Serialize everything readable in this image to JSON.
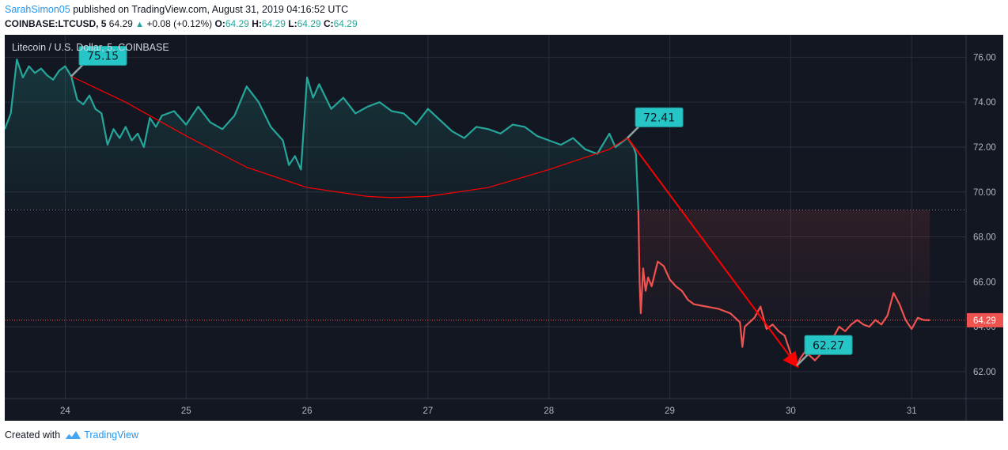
{
  "header": {
    "user": "SarahSimon05",
    "published_text": "published on TradingView.com, August 31, 2019 04:16:52 UTC",
    "symbol": "COINBASE:LTCUSD, 5",
    "last": "64.29",
    "arrow": "▲",
    "change": "+0.08 (+0.12%)",
    "o_label": "O:",
    "o_val": "64.29",
    "h_label": "H:",
    "h_val": "64.29",
    "l_label": "L:",
    "l_val": "64.29",
    "c_label": "C:",
    "c_val": "64.29"
  },
  "footer": {
    "created_with": "Created with",
    "brand": "TradingView"
  },
  "colors": {
    "background": "#131722",
    "grid": "#2a2e39",
    "up_line": "#26a69a",
    "down_line": "#ef5350",
    "annotation_bg": "#26c6c6",
    "trend": "#ff0000",
    "price_label_bg": "#ef5350",
    "axis_text": "#b2b5be",
    "logo_color": "#2196f3"
  },
  "chart_data": {
    "type": "line",
    "title": "Litecoin / U.S. Dollar, 5, COINBASE",
    "xlabel": "",
    "ylabel": "",
    "x_range": [
      23.5,
      31.45
    ],
    "ylim": [
      60.8,
      77.0
    ],
    "grid": true,
    "x_ticks": [
      24,
      25,
      26,
      27,
      28,
      29,
      30,
      31
    ],
    "x_tick_labels": [
      "24",
      "25",
      "26",
      "27",
      "28",
      "29",
      "30",
      "31"
    ],
    "y_ticks": [
      62,
      64,
      66,
      68,
      70,
      72,
      74,
      76
    ],
    "y_tick_labels": [
      "62.00",
      "64.00",
      "66.00",
      "68.00",
      "70.00",
      "72.00",
      "74.00",
      "76.00"
    ],
    "series": [
      {
        "color": "up",
        "x": [
          23.5,
          23.55,
          23.6,
          23.65,
          23.7,
          23.75,
          23.8,
          23.85,
          23.9,
          23.95,
          24.0,
          24.05,
          24.1,
          24.15,
          24.2,
          24.25,
          24.3,
          24.35,
          24.4,
          24.45,
          24.5,
          24.55,
          24.6,
          24.65,
          24.7,
          24.75,
          24.8,
          24.9,
          25.0,
          25.1,
          25.2,
          25.3,
          25.4,
          25.5,
          25.6,
          25.7,
          25.8,
          25.85,
          25.9,
          25.95,
          26.0,
          26.05,
          26.1,
          26.2,
          26.3,
          26.4,
          26.5,
          26.6,
          26.7,
          26.8,
          26.9,
          27.0,
          27.1,
          27.2,
          27.3,
          27.4,
          27.5,
          27.6,
          27.7,
          27.8,
          27.9,
          28.0,
          28.1,
          28.2,
          28.3,
          28.4,
          28.5,
          28.55,
          28.6,
          28.65,
          28.7,
          28.72,
          28.74
        ],
        "y": [
          72.8,
          73.5,
          75.9,
          75.1,
          75.6,
          75.3,
          75.5,
          75.2,
          75.0,
          75.4,
          75.6,
          75.15,
          74.1,
          73.9,
          74.3,
          73.7,
          73.5,
          72.1,
          72.8,
          72.4,
          72.9,
          72.3,
          72.6,
          72.0,
          73.3,
          72.9,
          73.4,
          73.6,
          73.0,
          73.8,
          73.1,
          72.8,
          73.4,
          74.7,
          74.0,
          72.9,
          72.3,
          71.2,
          71.6,
          71.0,
          75.1,
          74.2,
          74.8,
          73.7,
          74.2,
          73.5,
          73.8,
          74.0,
          73.6,
          73.5,
          73.0,
          73.7,
          73.2,
          72.7,
          72.4,
          72.9,
          72.8,
          72.6,
          73.0,
          72.9,
          72.5,
          72.3,
          72.1,
          72.4,
          71.9,
          71.7,
          72.6,
          72.0,
          72.2,
          72.41,
          72.0,
          71.7,
          69.2
        ]
      },
      {
        "color": "down",
        "x": [
          28.74,
          28.75,
          28.76,
          28.78,
          28.8,
          28.82,
          28.85,
          28.9,
          28.95,
          29.0,
          29.05,
          29.1,
          29.15,
          29.2,
          29.3,
          29.4,
          29.5,
          29.58,
          29.6,
          29.62,
          29.7,
          29.75,
          29.8,
          29.85,
          29.9,
          29.95,
          30.0,
          30.05,
          30.08,
          30.12,
          30.2,
          30.25,
          30.3,
          30.35,
          30.4,
          30.45,
          30.5,
          30.55,
          30.6,
          30.65,
          30.7,
          30.75,
          30.8,
          30.85,
          30.9,
          30.95,
          31.0,
          31.05,
          31.1,
          31.15
        ],
        "y": [
          69.2,
          66.0,
          64.6,
          66.6,
          65.6,
          66.2,
          65.8,
          66.9,
          66.7,
          66.1,
          65.8,
          65.6,
          65.2,
          65.0,
          64.9,
          64.8,
          64.6,
          64.2,
          63.1,
          64.0,
          64.4,
          64.9,
          63.9,
          64.1,
          63.8,
          63.6,
          62.8,
          62.27,
          62.6,
          62.9,
          62.5,
          62.8,
          63.3,
          63.5,
          64.0,
          63.8,
          64.1,
          64.3,
          64.1,
          64.0,
          64.3,
          64.1,
          64.5,
          65.5,
          65.0,
          64.3,
          63.9,
          64.4,
          64.3,
          64.29
        ]
      }
    ],
    "trend_lines": [
      {
        "type": "curve",
        "x": [
          24.05,
          24.5,
          25.0,
          25.5,
          26.0,
          26.5,
          26.7,
          27.0,
          27.5,
          28.0,
          28.5,
          28.65
        ],
        "y": [
          75.15,
          74.0,
          72.5,
          71.1,
          70.2,
          69.8,
          69.75,
          69.8,
          70.2,
          71.0,
          71.9,
          72.41
        ]
      },
      {
        "type": "arrow",
        "x": [
          28.65,
          30.05
        ],
        "y": [
          72.41,
          62.27
        ]
      }
    ],
    "annotations": [
      {
        "text": "75.15",
        "x": 24.05,
        "y": 75.15
      },
      {
        "text": "72.41",
        "x": 28.65,
        "y": 72.41
      },
      {
        "text": "62.27",
        "x": 30.05,
        "y": 62.27
      }
    ],
    "reference_lines": [
      {
        "y": 69.2,
        "style": "dotted"
      },
      {
        "y": 64.29,
        "style": "dotted-red"
      }
    ],
    "last_price": "64.29"
  }
}
